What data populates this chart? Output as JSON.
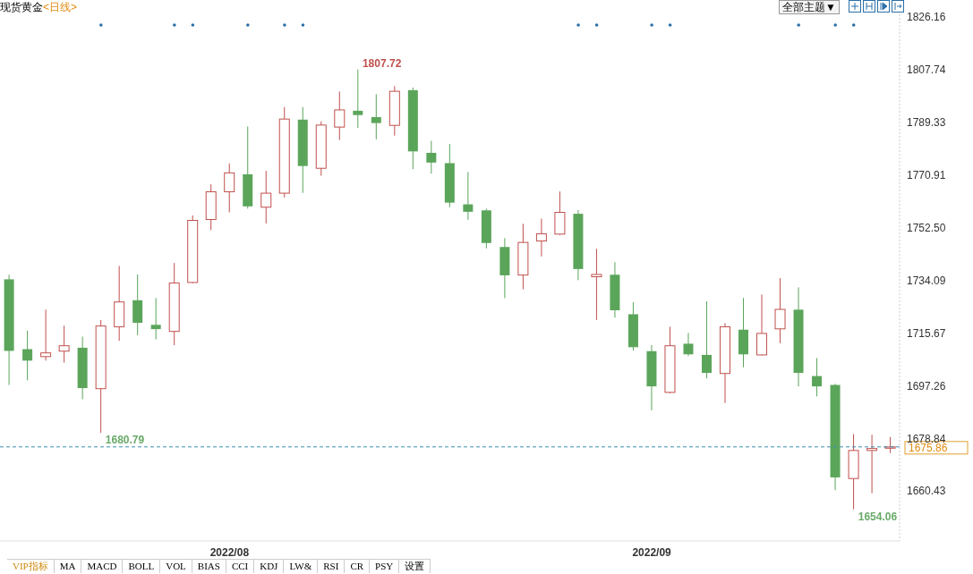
{
  "chart_data": {
    "type": "candlestick",
    "title": "现货黄金",
    "subtitle": "<日线>",
    "categories": [
      null,
      null,
      null,
      null,
      null,
      null,
      null,
      null,
      null,
      null,
      null,
      null,
      "2022/08",
      null,
      null,
      null,
      null,
      null,
      null,
      null,
      null,
      null,
      null,
      null,
      null,
      null,
      null,
      null,
      null,
      null,
      null,
      null,
      null,
      null,
      null,
      "2022/09",
      null,
      null,
      null,
      null,
      null,
      null,
      null,
      null,
      null,
      null,
      null,
      null,
      null
    ],
    "ohlc": [
      [
        1734.4,
        1736.0,
        1697.5,
        1709.4
      ],
      [
        1710.0,
        1716.5,
        1699.1,
        1706.0
      ],
      [
        1707.4,
        1723.8,
        1706.0,
        1708.7
      ],
      [
        1709.3,
        1718.2,
        1705.3,
        1711.2
      ],
      [
        1710.5,
        1714.4,
        1692.5,
        1696.4
      ],
      [
        1696.2,
        1720.2,
        1680.79,
        1718.1
      ],
      [
        1717.8,
        1739.1,
        1712.9,
        1726.5
      ],
      [
        1727.1,
        1736.1,
        1714.9,
        1719.2
      ],
      [
        1718.5,
        1727.9,
        1713.4,
        1717.0
      ],
      [
        1716.2,
        1740.1,
        1711.4,
        1733.1
      ],
      [
        1733.3,
        1756.7,
        1733.0,
        1755.0
      ],
      [
        1755.3,
        1767.6,
        1751.6,
        1765.0
      ],
      [
        1765.0,
        1774.9,
        1757.8,
        1771.6
      ],
      [
        1771.1,
        1787.8,
        1759.1,
        1759.9
      ],
      [
        1759.6,
        1772.3,
        1753.9,
        1764.5
      ],
      [
        1764.5,
        1794.6,
        1763.0,
        1790.4
      ],
      [
        1790.2,
        1794.6,
        1764.6,
        1774.0
      ],
      [
        1773.2,
        1789.6,
        1770.6,
        1788.3
      ],
      [
        1787.6,
        1800.0,
        1783.1,
        1793.6
      ],
      [
        1793.3,
        1807.72,
        1787.3,
        1791.8
      ],
      [
        1791.1,
        1799.1,
        1783.3,
        1789.0
      ],
      [
        1788.2,
        1801.9,
        1784.6,
        1800.1
      ],
      [
        1800.5,
        1801.4,
        1772.9,
        1779.1
      ],
      [
        1778.6,
        1782.8,
        1771.3,
        1775.2
      ],
      [
        1775.0,
        1781.7,
        1759.6,
        1761.2
      ],
      [
        1760.6,
        1771.9,
        1755.2,
        1758.0
      ],
      [
        1758.5,
        1759.1,
        1745.2,
        1747.1
      ],
      [
        1745.7,
        1748.8,
        1727.8,
        1735.8
      ],
      [
        1735.9,
        1753.8,
        1730.9,
        1747.3
      ],
      [
        1747.8,
        1755.6,
        1742.4,
        1750.3
      ],
      [
        1750.2,
        1765.1,
        1749.9,
        1757.8
      ],
      [
        1757.3,
        1758.6,
        1734.1,
        1738.0
      ],
      [
        1735.3,
        1745.1,
        1720.2,
        1736.1
      ],
      [
        1736.0,
        1740.4,
        1721.0,
        1723.6
      ],
      [
        1722.2,
        1726.4,
        1709.5,
        1710.7
      ],
      [
        1709.3,
        1711.4,
        1688.6,
        1697.0
      ],
      [
        1694.9,
        1717.8,
        1694.6,
        1711.2
      ],
      [
        1711.9,
        1715.7,
        1707.6,
        1708.2
      ],
      [
        1708.0,
        1726.7,
        1699.8,
        1701.7
      ],
      [
        1701.5,
        1719.1,
        1691.2,
        1717.8
      ],
      [
        1716.8,
        1727.9,
        1703.7,
        1708.2
      ],
      [
        1708.0,
        1729.1,
        1707.8,
        1715.5
      ],
      [
        1717.1,
        1734.8,
        1712.1,
        1723.9
      ],
      [
        1723.8,
        1731.6,
        1697.0,
        1701.7
      ],
      [
        1700.6,
        1706.9,
        1693.5,
        1697.0
      ],
      [
        1697.5,
        1697.9,
        1660.7,
        1665.2
      ],
      [
        1664.8,
        1680.3,
        1654.06,
        1674.6
      ],
      [
        1674.6,
        1680.1,
        1659.7,
        1675.3
      ],
      [
        1675.4,
        1679.3,
        1673.7,
        1675.86
      ]
    ],
    "colors": [
      "#5ba55b",
      "#5ba55b",
      "#c0504d",
      "#c0504d",
      "#5ba55b",
      "#c0504d",
      "#c0504d",
      "#5ba55b",
      "#5ba55b",
      "#c0504d",
      "#c0504d",
      "#c0504d",
      "#c0504d",
      "#5ba55b",
      "#c0504d",
      "#c0504d",
      "#5ba55b",
      "#c0504d",
      "#c0504d",
      "#5ba55b",
      "#5ba55b",
      "#c0504d",
      "#5ba55b",
      "#5ba55b",
      "#5ba55b",
      "#5ba55b",
      "#5ba55b",
      "#5ba55b",
      "#c0504d",
      "#c0504d",
      "#c0504d",
      "#5ba55b",
      "#c0504d",
      "#5ba55b",
      "#5ba55b",
      "#5ba55b",
      "#c0504d",
      "#5ba55b",
      "#5ba55b",
      "#c0504d",
      "#5ba55b",
      "#c0504d",
      "#c0504d",
      "#5ba55b",
      "#5ba55b",
      "#5ba55b",
      "#c0504d",
      "#c0504d",
      "#c0504d"
    ],
    "ylim": [
      1643,
      1832
    ],
    "yticks": [
      1826.16,
      1807.74,
      1789.33,
      1770.91,
      {
        "value": 1752.5,
        "label": "1752.50"
      },
      1734.09,
      1715.67,
      1697.26,
      1678.84,
      1660.43
    ],
    "ref_lines": [
      {
        "axis": "y",
        "value": 1675.86,
        "label": "1675.86",
        "color": "#3a8fb0",
        "line_style": "dashed"
      }
    ],
    "annotations": [
      "1807.72",
      "1680.79",
      "1654.06",
      "全部主题▼",
      "VIP指标",
      "MA",
      "MACD",
      "BOLL",
      "VOL",
      "BIAS",
      "CCI",
      "KDJ",
      "LW&",
      "RSI",
      "CR",
      "PSY",
      "设置"
    ],
    "legend": false
  }
}
